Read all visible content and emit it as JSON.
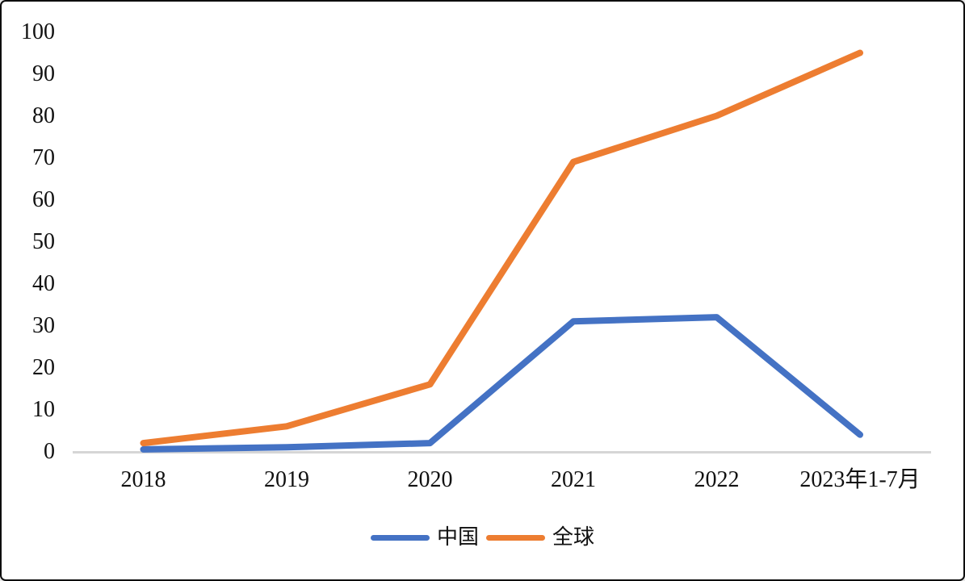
{
  "chart_data": {
    "type": "line",
    "title": "",
    "xlabel": "",
    "ylabel": "",
    "categories": [
      "2018",
      "2019",
      "2020",
      "2021",
      "2022",
      "2023年1-7月"
    ],
    "series": [
      {
        "name": "中国",
        "color": "#4472C4",
        "values": [
          0.5,
          1,
          2,
          31,
          32,
          4
        ]
      },
      {
        "name": "全球",
        "color": "#ED7D31",
        "values": [
          2,
          6,
          16,
          69,
          80,
          95
        ]
      }
    ],
    "y_ticks": [
      0,
      10,
      20,
      30,
      40,
      50,
      60,
      70,
      80,
      90,
      100
    ],
    "ylim": [
      0,
      100
    ],
    "grid": false,
    "legend_position": "bottom",
    "axis_color": "#d6d6d6",
    "text_color": "#111111",
    "background": "#ffffff"
  }
}
